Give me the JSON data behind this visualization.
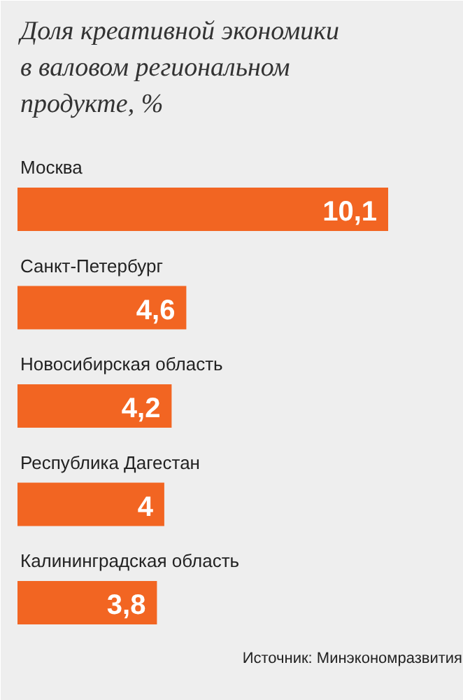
{
  "chart_data": {
    "type": "bar",
    "orientation": "horizontal",
    "title": "Доля креативной экономики\nв валовом региональном\nпродукте, %",
    "categories": [
      "Москва",
      "Санкт-Петербург",
      "Новосибирская область",
      "Республика Дагестан",
      "Калининградская область"
    ],
    "values": [
      10.1,
      4.6,
      4.2,
      4,
      3.8
    ],
    "value_labels": [
      "10,1",
      "4,6",
      "4,2",
      "4",
      "3,8"
    ],
    "color": "#f26522",
    "grid": false,
    "annotations": [
      "Источник: Минэкономразвития"
    ]
  }
}
